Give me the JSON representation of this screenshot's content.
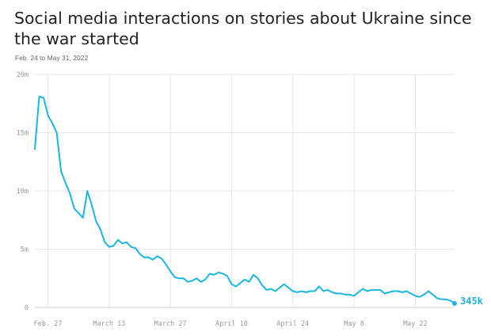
{
  "title": "Social media interactions on stories about Ukraine since the war started",
  "subtitle": "Feb. 24 to May 31, 2022",
  "colors": {
    "line": "#1cb5de",
    "grid": "#e6e6e6",
    "axis": "#d0d0d0"
  },
  "chart_data": {
    "type": "line",
    "title": "Social media interactions on stories about Ukraine since the war started",
    "subtitle": "Feb. 24 to May 31, 2022",
    "xlabel": "",
    "ylabel": "",
    "ylim": [
      0,
      20000000
    ],
    "xlim": [
      "2022-02-24",
      "2022-05-31"
    ],
    "yticks": [
      {
        "value": 0,
        "label": "0"
      },
      {
        "value": 5000000,
        "label": "5m"
      },
      {
        "value": 10000000,
        "label": "10m"
      },
      {
        "value": 15000000,
        "label": "15m"
      },
      {
        "value": 20000000,
        "label": "20m"
      }
    ],
    "xticks": [
      {
        "date": "2022-02-27",
        "label": "Feb. 27"
      },
      {
        "date": "2022-03-13",
        "label": "March 13"
      },
      {
        "date": "2022-03-27",
        "label": "March 27"
      },
      {
        "date": "2022-04-10",
        "label": "April 10"
      },
      {
        "date": "2022-04-24",
        "label": "April 24"
      },
      {
        "date": "2022-05-08",
        "label": "May 8"
      },
      {
        "date": "2022-05-22",
        "label": "May 22"
      }
    ],
    "grid": true,
    "end_label": "345k",
    "series": [
      {
        "x": [
          "2022-02-24",
          "2022-02-25",
          "2022-02-26",
          "2022-02-27",
          "2022-02-28",
          "2022-03-01",
          "2022-03-02",
          "2022-03-03",
          "2022-03-04",
          "2022-03-05",
          "2022-03-06",
          "2022-03-07",
          "2022-03-08",
          "2022-03-09",
          "2022-03-10",
          "2022-03-11",
          "2022-03-12",
          "2022-03-13",
          "2022-03-14",
          "2022-03-15",
          "2022-03-16",
          "2022-03-17",
          "2022-03-18",
          "2022-03-19",
          "2022-03-20",
          "2022-03-21",
          "2022-03-22",
          "2022-03-23",
          "2022-03-24",
          "2022-03-25",
          "2022-03-26",
          "2022-03-27",
          "2022-03-28",
          "2022-03-29",
          "2022-03-30",
          "2022-03-31",
          "2022-04-01",
          "2022-04-02",
          "2022-04-03",
          "2022-04-04",
          "2022-04-05",
          "2022-04-06",
          "2022-04-07",
          "2022-04-08",
          "2022-04-09",
          "2022-04-10",
          "2022-04-11",
          "2022-04-12",
          "2022-04-13",
          "2022-04-14",
          "2022-04-15",
          "2022-04-16",
          "2022-04-17",
          "2022-04-18",
          "2022-04-19",
          "2022-04-20",
          "2022-04-21",
          "2022-04-22",
          "2022-04-23",
          "2022-04-24",
          "2022-04-25",
          "2022-04-26",
          "2022-04-27",
          "2022-04-28",
          "2022-04-29",
          "2022-04-30",
          "2022-05-01",
          "2022-05-02",
          "2022-05-03",
          "2022-05-04",
          "2022-05-05",
          "2022-05-06",
          "2022-05-07",
          "2022-05-08",
          "2022-05-09",
          "2022-05-10",
          "2022-05-11",
          "2022-05-12",
          "2022-05-13",
          "2022-05-14",
          "2022-05-15",
          "2022-05-16",
          "2022-05-17",
          "2022-05-18",
          "2022-05-19",
          "2022-05-20",
          "2022-05-21",
          "2022-05-22",
          "2022-05-23",
          "2022-05-24",
          "2022-05-25",
          "2022-05-26",
          "2022-05-27",
          "2022-05-28",
          "2022-05-29",
          "2022-05-30",
          "2022-05-31"
        ],
        "values": [
          13600000,
          18100000,
          18000000,
          16500000,
          15800000,
          15000000,
          11700000,
          10700000,
          9800000,
          8500000,
          8100000,
          7700000,
          10000000,
          8800000,
          7400000,
          6700000,
          5600000,
          5200000,
          5300000,
          5800000,
          5500000,
          5600000,
          5200000,
          5100000,
          4600000,
          4300000,
          4300000,
          4100000,
          4400000,
          4200000,
          3700000,
          3100000,
          2600000,
          2500000,
          2500000,
          2200000,
          2300000,
          2500000,
          2200000,
          2400000,
          2900000,
          2800000,
          3000000,
          2900000,
          2700000,
          2000000,
          1800000,
          2100000,
          2400000,
          2200000,
          2800000,
          2500000,
          1900000,
          1500000,
          1600000,
          1400000,
          1700000,
          2000000,
          1700000,
          1400000,
          1300000,
          1400000,
          1300000,
          1400000,
          1400000,
          1800000,
          1400000,
          1500000,
          1300000,
          1200000,
          1200000,
          1100000,
          1100000,
          1000000,
          1300000,
          1600000,
          1400000,
          1500000,
          1500000,
          1500000,
          1200000,
          1300000,
          1400000,
          1400000,
          1300000,
          1400000,
          1200000,
          1000000,
          900000,
          1100000,
          1400000,
          1100000,
          800000,
          700000,
          700000,
          600000,
          345000
        ]
      }
    ]
  }
}
